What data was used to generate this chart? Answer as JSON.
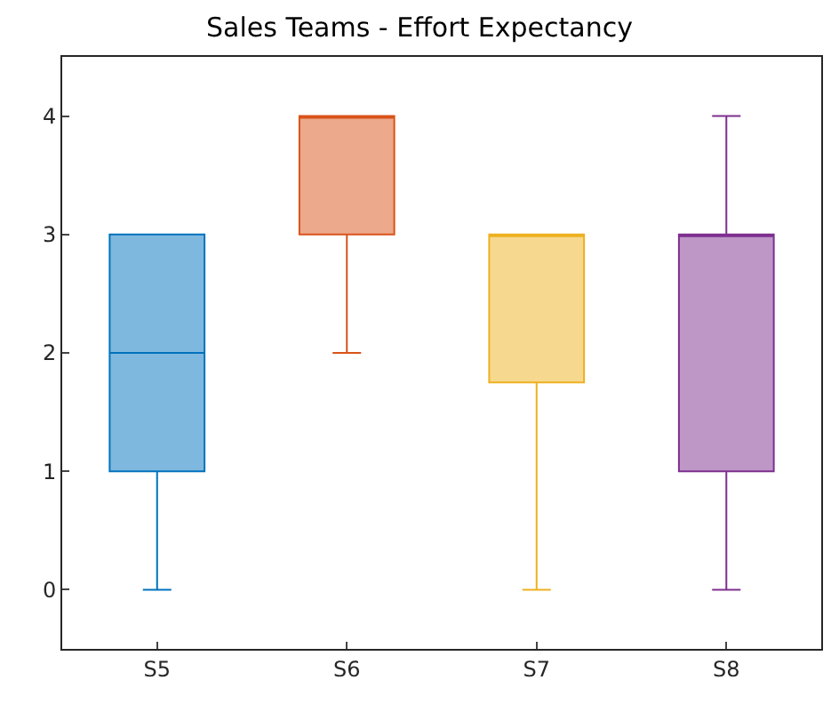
{
  "chart_data": {
    "type": "box",
    "title": "Sales Teams - Effort Expectancy",
    "categories": [
      "S5",
      "S6",
      "S7",
      "S8"
    ],
    "colors": [
      "#0072bd",
      "#d95319",
      "#edb120",
      "#7e2f8e"
    ],
    "boxes": [
      {
        "low": 0,
        "q1": 1,
        "median": 2,
        "q3": 3,
        "high": 3
      },
      {
        "low": 2,
        "q1": 3,
        "median": 4,
        "q3": 4,
        "high": 4
      },
      {
        "low": 0,
        "q1": 1.75,
        "median": 3,
        "q3": 3,
        "high": 3
      },
      {
        "low": 0,
        "q1": 1,
        "median": 3,
        "q3": 3,
        "high": 4
      }
    ],
    "ylim": [
      -0.5,
      4.5
    ],
    "yticks": [
      0,
      1,
      2,
      3,
      4
    ]
  }
}
